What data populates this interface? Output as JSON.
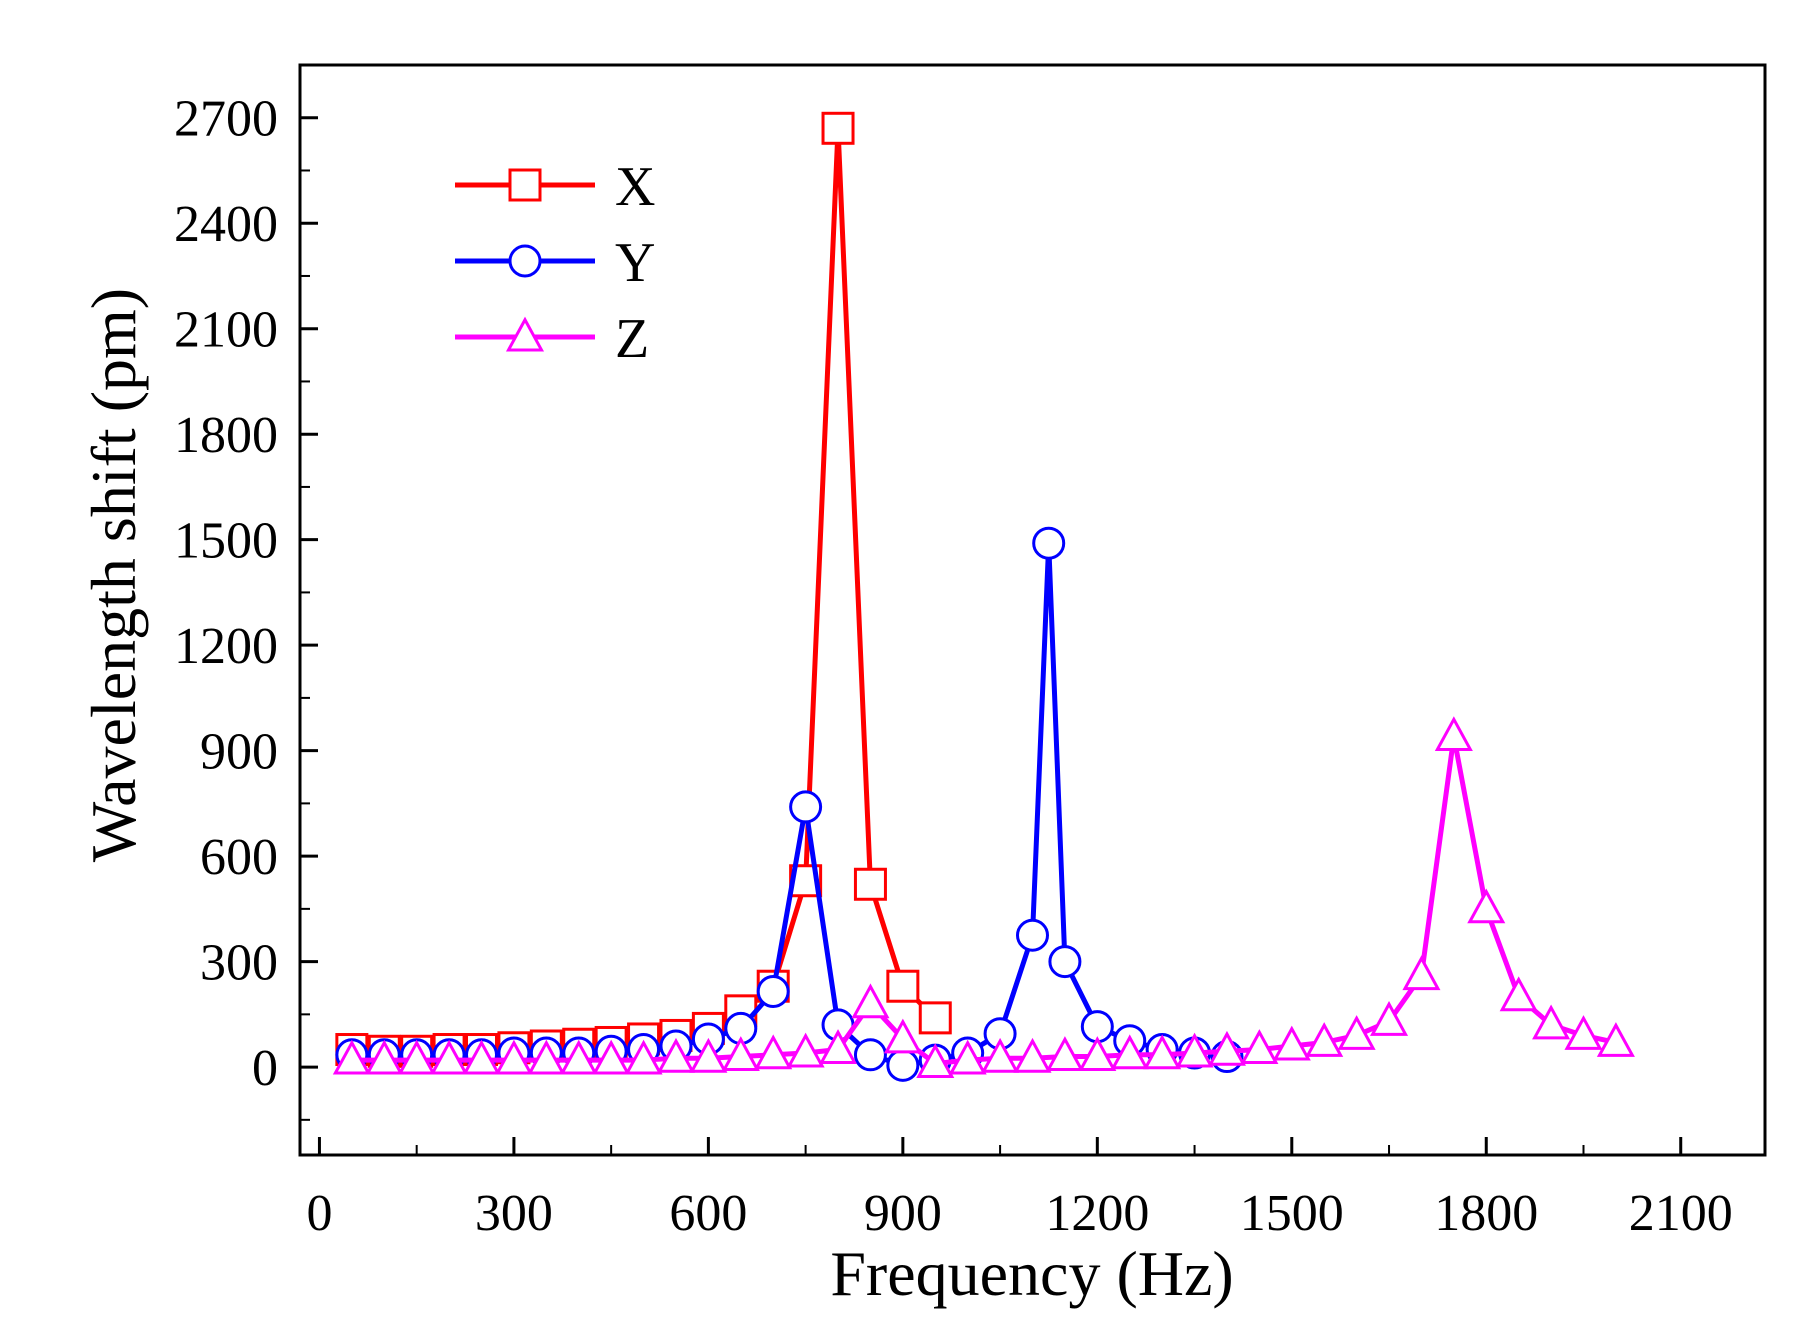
{
  "chart_data": {
    "type": "line",
    "title": "",
    "xlabel": "Frequency (Hz)",
    "ylabel": "Wavelength shift (pm)",
    "xlim": [
      -30,
      2230
    ],
    "ylim": [
      -250,
      2850
    ],
    "xticks": [
      0,
      300,
      600,
      900,
      1200,
      1500,
      1800,
      2100
    ],
    "yticks": [
      0,
      300,
      600,
      900,
      1200,
      1500,
      1800,
      2100,
      2400,
      2700
    ],
    "xtick_labels": [
      "0",
      "300",
      "600",
      "900",
      "1200",
      "1500",
      "1800",
      "2100"
    ],
    "ytick_labels": [
      "0",
      "300",
      "600",
      "900",
      "1200",
      "1500",
      "1800",
      "2100",
      "2400",
      "2700"
    ],
    "legend_position": "top-left",
    "series": [
      {
        "name": "X",
        "color": "#ff0000",
        "marker": "square",
        "x": [
          50,
          100,
          150,
          200,
          250,
          300,
          350,
          400,
          450,
          500,
          550,
          600,
          650,
          700,
          750,
          800,
          850,
          900,
          950
        ],
        "y": [
          50,
          45,
          45,
          50,
          50,
          55,
          60,
          65,
          70,
          80,
          90,
          110,
          160,
          230,
          530,
          2670,
          520,
          230,
          140
        ]
      },
      {
        "name": "Y",
        "color": "#0000ff",
        "marker": "circle",
        "x": [
          50,
          100,
          150,
          200,
          250,
          300,
          350,
          400,
          450,
          500,
          550,
          600,
          650,
          700,
          750,
          800,
          850,
          900,
          950,
          1000,
          1050,
          1100,
          1125,
          1150,
          1200,
          1250,
          1300,
          1350,
          1400
        ],
        "y": [
          35,
          35,
          35,
          35,
          35,
          40,
          40,
          40,
          45,
          50,
          60,
          80,
          110,
          215,
          740,
          120,
          35,
          5,
          20,
          40,
          95,
          375,
          1490,
          300,
          115,
          75,
          50,
          40,
          30
        ]
      },
      {
        "name": "Z",
        "color": "#ff00ff",
        "marker": "triangle",
        "x": [
          50,
          100,
          150,
          200,
          250,
          300,
          350,
          400,
          450,
          500,
          550,
          600,
          650,
          700,
          750,
          800,
          850,
          900,
          950,
          1000,
          1050,
          1100,
          1150,
          1200,
          1250,
          1300,
          1350,
          1400,
          1450,
          1500,
          1550,
          1600,
          1650,
          1700,
          1750,
          1800,
          1850,
          1900,
          1950,
          2000
        ],
        "y": [
          20,
          20,
          20,
          20,
          20,
          20,
          20,
          20,
          20,
          20,
          25,
          25,
          30,
          35,
          40,
          50,
          180,
          80,
          10,
          20,
          25,
          25,
          30,
          30,
          35,
          35,
          40,
          45,
          50,
          60,
          70,
          90,
          130,
          260,
          940,
          450,
          200,
          120,
          90,
          70
        ]
      }
    ]
  }
}
